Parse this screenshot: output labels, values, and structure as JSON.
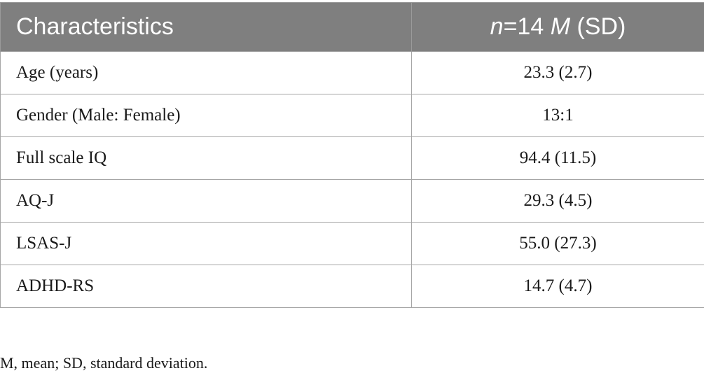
{
  "table": {
    "header": {
      "col1": "Characteristics",
      "col2_n_italic": "n",
      "col2_n_value": "=14 ",
      "col2_m_italic": "M",
      "col2_sd": " (SD)"
    },
    "rows": [
      {
        "label": "Age (years)",
        "value": "23.3 (2.7)"
      },
      {
        "label": "Gender (Male: Female)",
        "value": "13:1"
      },
      {
        "label": "Full scale IQ",
        "value": "94.4 (11.5)"
      },
      {
        "label": "AQ-J",
        "value": "29.3 (4.5)"
      },
      {
        "label": "LSAS-J",
        "value": "55.0 (27.3)"
      },
      {
        "label": "ADHD-RS",
        "value": "14.7 (4.7)"
      }
    ]
  },
  "footnote": "M, mean; SD, standard deviation."
}
